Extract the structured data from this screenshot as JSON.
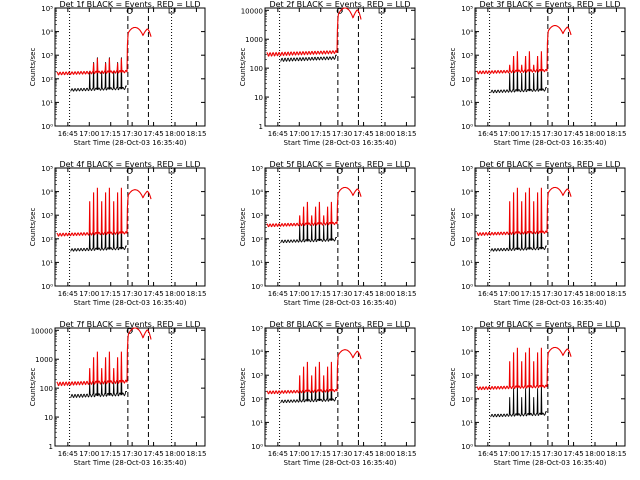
{
  "chart_data": [
    {
      "type": "line",
      "title": "Det 1f BLACK = Events, RED = LLD",
      "xlabel": "Start Time (28-Oct-03 16:35:40)",
      "ylabel": "Counts/sec",
      "yscale": "log",
      "ylim": [
        1,
        100000
      ],
      "ytick_labels": [
        "10⁰",
        "10¹",
        "10²",
        "10³",
        "10⁴",
        "10⁵"
      ],
      "ytick_values": [
        1,
        10,
        100,
        1000,
        10000,
        100000
      ],
      "xlim": [
        16.6,
        18.35
      ],
      "xtick_values": [
        16.75,
        17.0,
        17.25,
        17.5,
        17.75,
        18.0,
        18.25
      ],
      "xtick_labels": [
        "16:45",
        "17:00",
        "17:15",
        "17:30",
        "17:45",
        "18:00",
        "18:15"
      ],
      "vlines_dotted": [
        16.77,
        17.96
      ],
      "vlines_dashed": [
        17.45,
        17.69
      ],
      "markers": {
        "circle": 17.47,
        "square": 17.96
      },
      "series": [
        {
          "name": "Events",
          "color": "#000000",
          "baseline": 35,
          "spike_peak": 1100,
          "spikes": 9,
          "pre_end_offset": -0.2
        },
        {
          "name": "LLD",
          "color": "#ee0000",
          "baseline": 180,
          "spike_peak": 1000,
          "spikes": 9,
          "flare_peak": 15000
        }
      ]
    },
    {
      "type": "line",
      "title": "Det 2f BLACK = Events, RED = LLD",
      "xlabel": "Start Time (28-Oct-03 16:35:40)",
      "ylabel": "Counts/sec",
      "yscale": "log",
      "ylim": [
        1,
        12000
      ],
      "ytick_labels": [
        "1",
        "10",
        "100",
        "1000",
        "10000"
      ],
      "ytick_values": [
        1,
        10,
        100,
        1000,
        10000
      ],
      "xlim": [
        16.6,
        18.35
      ],
      "xtick_values": [
        16.75,
        17.0,
        17.25,
        17.5,
        17.75,
        18.0,
        18.25
      ],
      "xtick_labels": [
        "16:45",
        "17:00",
        "17:15",
        "17:30",
        "17:45",
        "18:00",
        "18:15"
      ],
      "vlines_dotted": [
        16.77,
        17.96
      ],
      "vlines_dashed": [
        17.45,
        17.69
      ],
      "markers": {
        "circle": 17.47,
        "square": 17.96
      },
      "series": [
        {
          "name": "Events",
          "color": "#000000",
          "baseline": 200,
          "spike_peak": 0,
          "spikes": 0
        },
        {
          "name": "LLD",
          "color": "#ee0000",
          "baseline": 320,
          "spike_peak": 0,
          "spikes": 0,
          "flare_peak": 12000
        }
      ]
    },
    {
      "type": "line",
      "title": "Det 3f BLACK = Events, RED = LLD",
      "xlabel": "Start Time (28-Oct-03 16:35:40)",
      "ylabel": "Counts/sec",
      "yscale": "log",
      "ylim": [
        1,
        100000
      ],
      "ytick_labels": [
        "10⁰",
        "10¹",
        "10²",
        "10³",
        "10⁴",
        "10⁵"
      ],
      "ytick_values": [
        1,
        10,
        100,
        1000,
        10000,
        100000
      ],
      "xlim": [
        16.6,
        18.35
      ],
      "xtick_values": [
        16.75,
        17.0,
        17.25,
        17.5,
        17.75,
        18.0,
        18.25
      ],
      "xtick_labels": [
        "16:45",
        "17:00",
        "17:15",
        "17:30",
        "17:45",
        "18:00",
        "18:15"
      ],
      "vlines_dotted": [
        16.77,
        17.96
      ],
      "vlines_dashed": [
        17.45,
        17.69
      ],
      "markers": {
        "circle": 17.47,
        "square": 17.96
      },
      "series": [
        {
          "name": "Events",
          "color": "#000000",
          "baseline": 30,
          "spike_peak": 900,
          "spikes": 9
        },
        {
          "name": "LLD",
          "color": "#ee0000",
          "baseline": 200,
          "spike_peak": 2000,
          "spikes": 9,
          "flare_peak": 18000
        }
      ]
    },
    {
      "type": "line",
      "title": "Det 4f BLACK = Events, RED = LLD",
      "xlabel": "Start Time (28-Oct-03 16:35:40)",
      "ylabel": "Counts/sec",
      "yscale": "log",
      "ylim": [
        1,
        100000
      ],
      "ytick_labels": [
        "10⁰",
        "10¹",
        "10²",
        "10³",
        "10⁴",
        "10⁵"
      ],
      "ytick_values": [
        1,
        10,
        100,
        1000,
        10000,
        100000
      ],
      "xlim": [
        16.6,
        18.35
      ],
      "xtick_values": [
        16.75,
        17.0,
        17.25,
        17.5,
        17.75,
        18.0,
        18.25
      ],
      "xtick_labels": [
        "16:45",
        "17:00",
        "17:15",
        "17:30",
        "17:45",
        "18:00",
        "18:15"
      ],
      "vlines_dotted": [
        16.77,
        17.96
      ],
      "vlines_dashed": [
        17.45,
        17.69
      ],
      "markers": {
        "circle": 17.47,
        "square": 17.96
      },
      "series": [
        {
          "name": "Events",
          "color": "#000000",
          "baseline": 35,
          "spike_peak": 1200,
          "spikes": 9
        },
        {
          "name": "LLD",
          "color": "#ee0000",
          "baseline": 160,
          "spike_peak": 20000,
          "spikes": 9,
          "flare_peak": 12000
        }
      ]
    },
    {
      "type": "line",
      "title": "Det 5f BLACK = Events, RED = LLD",
      "xlabel": "Start Time (28-Oct-03 16:35:40)",
      "ylabel": "Counts/sec",
      "yscale": "log",
      "ylim": [
        1,
        100000
      ],
      "ytick_labels": [
        "10⁰",
        "10¹",
        "10²",
        "10³",
        "10⁴",
        "10⁵"
      ],
      "ytick_values": [
        1,
        10,
        100,
        1000,
        10000,
        100000
      ],
      "xlim": [
        16.6,
        18.35
      ],
      "xtick_values": [
        16.75,
        17.0,
        17.25,
        17.5,
        17.75,
        18.0,
        18.25
      ],
      "xtick_labels": [
        "16:45",
        "17:00",
        "17:15",
        "17:30",
        "17:45",
        "18:00",
        "18:15"
      ],
      "vlines_dotted": [
        16.77,
        17.96
      ],
      "vlines_dashed": [
        17.45,
        17.69
      ],
      "markers": {
        "circle": 17.47,
        "square": 17.96
      },
      "series": [
        {
          "name": "Events",
          "color": "#000000",
          "baseline": 80,
          "spike_peak": 2000,
          "spikes": 9
        },
        {
          "name": "LLD",
          "color": "#ee0000",
          "baseline": 400,
          "spike_peak": 5000,
          "spikes": 9,
          "flare_peak": 15000
        }
      ]
    },
    {
      "type": "line",
      "title": "Det 6f BLACK = Events, RED = LLD",
      "xlabel": "Start Time (28-Oct-03 16:35:40)",
      "ylabel": "Counts/sec",
      "yscale": "log",
      "ylim": [
        1,
        100000
      ],
      "ytick_labels": [
        "10⁰",
        "10¹",
        "10²",
        "10³",
        "10⁴",
        "10⁵"
      ],
      "ytick_values": [
        1,
        10,
        100,
        1000,
        10000,
        100000
      ],
      "xlim": [
        16.6,
        18.35
      ],
      "xtick_values": [
        16.75,
        17.0,
        17.25,
        17.5,
        17.75,
        18.0,
        18.25
      ],
      "xtick_labels": [
        "16:45",
        "17:00",
        "17:15",
        "17:30",
        "17:45",
        "18:00",
        "18:15"
      ],
      "vlines_dotted": [
        16.77,
        17.96
      ],
      "vlines_dashed": [
        17.45,
        17.69
      ],
      "markers": {
        "circle": 17.47,
        "square": 17.96
      },
      "series": [
        {
          "name": "Events",
          "color": "#000000",
          "baseline": 35,
          "spike_peak": 1000,
          "spikes": 9
        },
        {
          "name": "LLD",
          "color": "#ee0000",
          "baseline": 170,
          "spike_peak": 20000,
          "spikes": 9,
          "flare_peak": 15000
        }
      ]
    },
    {
      "type": "line",
      "title": "Det 7f BLACK = Events, RED = LLD",
      "xlabel": "Start Time (28-Oct-03 16:35:40)",
      "ylabel": "Counts/sec",
      "yscale": "log",
      "ylim": [
        1,
        12000
      ],
      "ytick_labels": [
        "1",
        "10",
        "100",
        "1000",
        "10000"
      ],
      "ytick_values": [
        1,
        10,
        100,
        1000,
        10000
      ],
      "xlim": [
        16.6,
        18.35
      ],
      "xtick_values": [
        16.75,
        17.0,
        17.25,
        17.5,
        17.75,
        18.0,
        18.25
      ],
      "xtick_labels": [
        "16:45",
        "17:00",
        "17:15",
        "17:30",
        "17:45",
        "18:00",
        "18:15"
      ],
      "vlines_dotted": [
        16.77,
        17.96
      ],
      "vlines_dashed": [
        17.45,
        17.69
      ],
      "markers": {
        "circle": 17.47,
        "square": 17.96
      },
      "series": [
        {
          "name": "Events",
          "color": "#000000",
          "baseline": 55,
          "spike_peak": 800,
          "spikes": 9
        },
        {
          "name": "LLD",
          "color": "#ee0000",
          "baseline": 150,
          "spike_peak": 2500,
          "spikes": 9,
          "flare_peak": 12000
        }
      ]
    },
    {
      "type": "line",
      "title": "Det 8f BLACK = Events, RED = LLD",
      "xlabel": "Start Time (28-Oct-03 16:35:40)",
      "ylabel": "Counts/sec",
      "yscale": "log",
      "ylim": [
        1,
        100000
      ],
      "ytick_labels": [
        "10⁰",
        "10¹",
        "10²",
        "10³",
        "10⁴",
        "10⁵"
      ],
      "ytick_values": [
        1,
        10,
        100,
        1000,
        10000,
        100000
      ],
      "xlim": [
        16.6,
        18.35
      ],
      "xtick_values": [
        16.75,
        17.0,
        17.25,
        17.5,
        17.75,
        18.0,
        18.25
      ],
      "xtick_labels": [
        "16:45",
        "17:00",
        "17:15",
        "17:30",
        "17:45",
        "18:00",
        "18:15"
      ],
      "vlines_dotted": [
        16.77,
        17.96
      ],
      "vlines_dashed": [
        17.45,
        17.69
      ],
      "markers": {
        "circle": 17.47,
        "square": 17.96
      },
      "series": [
        {
          "name": "Events",
          "color": "#000000",
          "baseline": 80,
          "spike_peak": 1500,
          "spikes": 9
        },
        {
          "name": "LLD",
          "color": "#ee0000",
          "baseline": 200,
          "spike_peak": 5000,
          "spikes": 9,
          "flare_peak": 12000
        }
      ]
    },
    {
      "type": "line",
      "title": "Det 9f BLACK = Events, RED = LLD",
      "xlabel": "Start Time (28-Oct-03 16:35:40)",
      "ylabel": "Counts/sec",
      "yscale": "log",
      "ylim": [
        1,
        100000
      ],
      "ytick_labels": [
        "10⁰",
        "10¹",
        "10²",
        "10³",
        "10⁴",
        "10⁵"
      ],
      "ytick_values": [
        1,
        10,
        100,
        1000,
        10000,
        100000
      ],
      "xlim": [
        16.6,
        18.35
      ],
      "xtick_values": [
        16.75,
        17.0,
        17.25,
        17.5,
        17.75,
        18.0,
        18.25
      ],
      "xtick_labels": [
        "16:45",
        "17:00",
        "17:15",
        "17:30",
        "17:45",
        "18:00",
        "18:15"
      ],
      "vlines_dotted": [
        16.77,
        17.96
      ],
      "vlines_dashed": [
        17.45,
        17.69
      ],
      "markers": {
        "circle": 17.47,
        "square": 17.96
      },
      "series": [
        {
          "name": "Events",
          "color": "#000000",
          "baseline": 20,
          "spike_peak": 600,
          "spikes": 9
        },
        {
          "name": "LLD",
          "color": "#ee0000",
          "baseline": 300,
          "spike_peak": 20000,
          "spikes": 9,
          "flare_peak": 15000
        }
      ]
    }
  ]
}
